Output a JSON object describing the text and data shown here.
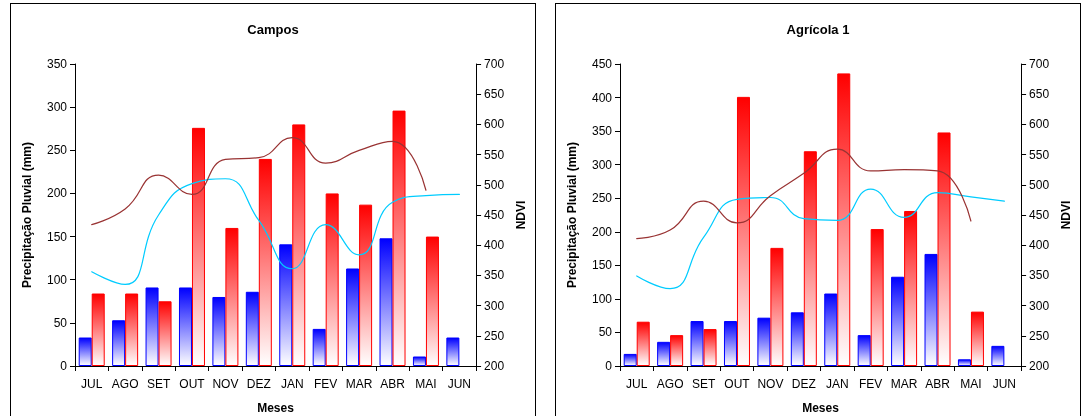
{
  "chart_data": [
    {
      "type": "bar",
      "title": "Campos",
      "xlabel": "Meses",
      "ylabel": "Precipitação Pluvial (mm)",
      "y2label": "NDVI",
      "categories": [
        "JUL",
        "AGO",
        "SET",
        "OUT",
        "NOV",
        "DEZ",
        "JAN",
        "FEV",
        "MAR",
        "ABR",
        "MAI",
        "JUN"
      ],
      "series": [
        {
          "color": "#0000ff",
          "values": [
            33,
            53,
            91,
            91,
            80,
            86,
            141,
            43,
            113,
            148,
            11,
            33
          ]
        },
        {
          "color": "#ff0000",
          "values": [
            84,
            84,
            75,
            276,
            160,
            240,
            280,
            200,
            187,
            296,
            150,
            null
          ]
        },
        {
          "type": "line",
          "axis": "y2",
          "color": "#00ccff",
          "values": [
            356,
            335,
            450,
            502,
            510,
            441,
            361,
            434,
            384,
            471,
            482,
            484
          ]
        },
        {
          "type": "line",
          "axis": "y2",
          "color": "#993333",
          "values": [
            434,
            460,
            516,
            484,
            542,
            545,
            578,
            536,
            557,
            572,
            491,
            null
          ]
        }
      ],
      "ylim": [
        0,
        350
      ],
      "yticks": [
        0,
        50,
        100,
        150,
        200,
        250,
        300,
        350
      ],
      "y2lim": [
        200,
        700
      ],
      "y2ticks": [
        200,
        250,
        300,
        350,
        400,
        450,
        500,
        550,
        600,
        650,
        700
      ],
      "grid": false,
      "marker": "none",
      "line_style": "solid"
    },
    {
      "type": "bar",
      "title": "Agrícola 1",
      "xlabel": "Meses",
      "ylabel": "Precipitação Pluvial (mm)",
      "y2label": "NDVI",
      "categories": [
        "JUL",
        "AGO",
        "SET",
        "OUT",
        "NOV",
        "DEZ",
        "JAN",
        "FEV",
        "MAR",
        "ABR",
        "MAI",
        "JUN"
      ],
      "series": [
        {
          "color": "#0000ff",
          "values": [
            18,
            36,
            67,
            67,
            72,
            80,
            108,
            46,
            133,
            167,
            10,
            30
          ]
        },
        {
          "color": "#ff0000",
          "values": [
            66,
            46,
            55,
            401,
            176,
            320,
            436,
            204,
            231,
            348,
            81,
            null
          ]
        },
        {
          "type": "line",
          "axis": "y2",
          "color": "#00ccff",
          "values": [
            349,
            328,
            413,
            476,
            479,
            444,
            441,
            493,
            446,
            487,
            480,
            473
          ]
        },
        {
          "type": "line",
          "axis": "y2",
          "color": "#993333",
          "values": [
            411,
            425,
            473,
            437,
            482,
            519,
            559,
            523,
            525,
            523,
            440,
            null
          ]
        }
      ],
      "ylim": [
        0,
        450
      ],
      "yticks": [
        0,
        50,
        100,
        150,
        200,
        250,
        300,
        350,
        400,
        450
      ],
      "y2lim": [
        200,
        700
      ],
      "y2ticks": [
        200,
        250,
        300,
        350,
        400,
        450,
        500,
        550,
        600,
        650,
        700
      ],
      "grid": false,
      "marker": "none",
      "line_style": "solid"
    }
  ]
}
